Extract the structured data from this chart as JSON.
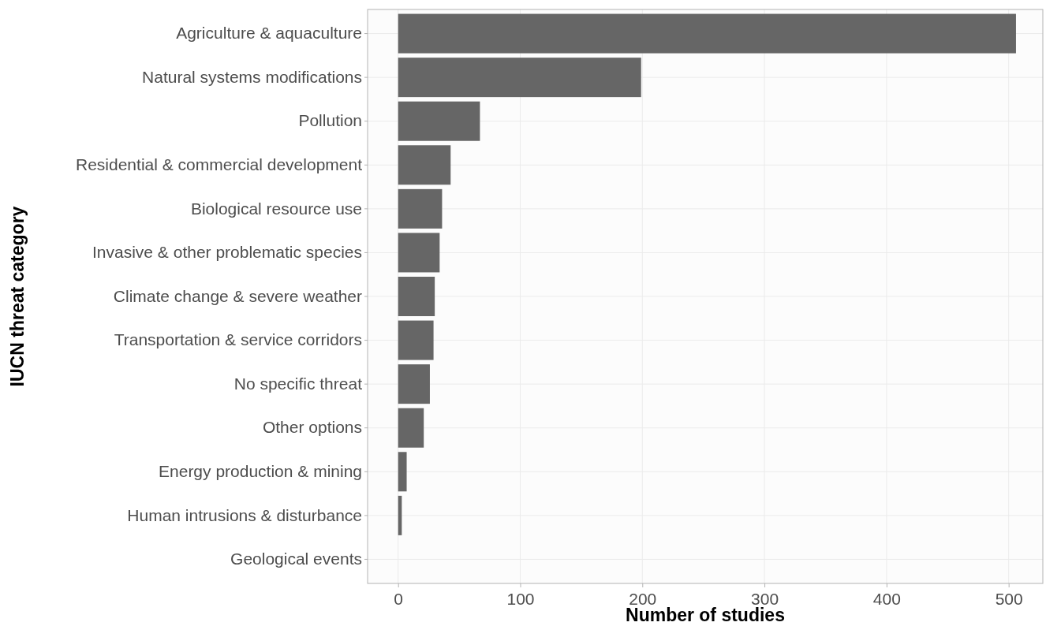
{
  "chart_data": {
    "type": "bar",
    "orientation": "horizontal",
    "xlabel": "Number of studies",
    "ylabel": "IUCN threat category",
    "categories": [
      "Agriculture & aquaculture",
      "Natural systems modifications",
      "Pollution",
      "Residential & commercial development",
      "Biological resource use",
      "Invasive & other problematic species",
      "Climate change & severe weather",
      "Transportation & service corridors",
      "No specific threat",
      "Other options",
      "Energy production & mining",
      "Human intrusions & disturbance",
      "Geological events"
    ],
    "values": [
      506,
      199,
      67,
      43,
      36,
      34,
      30,
      29,
      26,
      21,
      7,
      3,
      0
    ],
    "color": "#666666",
    "xlim": [
      -25,
      528
    ],
    "xticks": [
      0,
      100,
      200,
      300,
      400,
      500
    ],
    "grid": true
  }
}
